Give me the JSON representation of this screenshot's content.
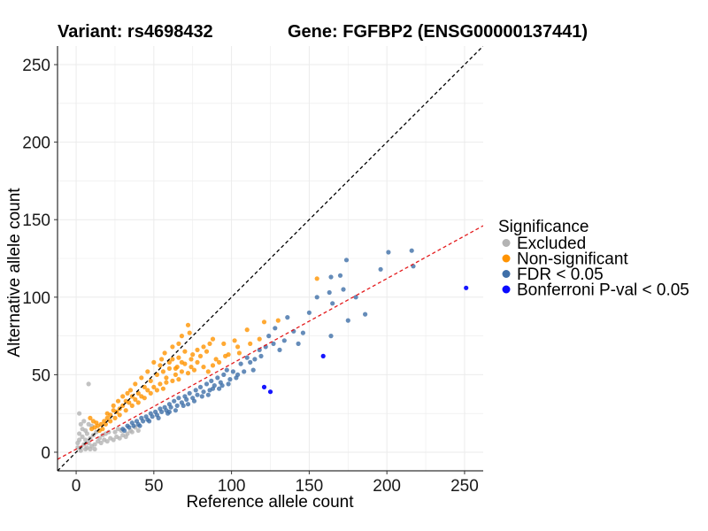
{
  "chart_data": {
    "type": "scatter",
    "title_left": "Variant: rs4698432",
    "title_right": "Gene: FGFBP2 (ENSG00000137441)",
    "xlabel": "Reference allele count",
    "ylabel": "Alternative allele count",
    "xlim": [
      -12,
      262
    ],
    "ylim": [
      -12,
      262
    ],
    "xticks": [
      0,
      50,
      100,
      150,
      200,
      250
    ],
    "yticks": [
      0,
      50,
      100,
      150,
      200,
      250
    ],
    "grid": true,
    "legend": {
      "title": "Significance",
      "position": "right",
      "items": [
        {
          "key": "excluded",
          "label": "Excluded",
          "color": "#b3b3b3"
        },
        {
          "key": "nonsig",
          "label": "Non-significant",
          "color": "#ff9300"
        },
        {
          "key": "fdr",
          "label": "FDR < 0.05",
          "color": "#3f6fa8"
        },
        {
          "key": "bonf",
          "label": "Bonferroni P-val < 0.05",
          "color": "#0a0aff"
        }
      ]
    },
    "reference_lines": [
      {
        "name": "identity",
        "slope": 1.0,
        "intercept": 0,
        "color": "#000000",
        "style": "dashed"
      },
      {
        "name": "fit",
        "slope": 0.55,
        "intercept": 2,
        "color": "#e41a1c",
        "style": "dashed"
      }
    ],
    "series": [
      {
        "key": "bonf",
        "points": [
          [
            251,
            106
          ],
          [
            159,
            62
          ],
          [
            121,
            42
          ],
          [
            125,
            39
          ]
        ]
      },
      {
        "key": "fdr",
        "points": [
          [
            216,
            130
          ],
          [
            217,
            120
          ],
          [
            201,
            129
          ],
          [
            196,
            118
          ],
          [
            186,
            89
          ],
          [
            180,
            100
          ],
          [
            175,
            85
          ],
          [
            172,
            105
          ],
          [
            170,
            114
          ],
          [
            174,
            124
          ],
          [
            164,
            113
          ],
          [
            163,
            103
          ],
          [
            165,
            96
          ],
          [
            164,
            75
          ],
          [
            155,
            100
          ],
          [
            150,
            90
          ],
          [
            140,
            78
          ],
          [
            136,
            87
          ],
          [
            128,
            80
          ],
          [
            124,
            75
          ],
          [
            122,
            68
          ],
          [
            118,
            66
          ],
          [
            115,
            60
          ],
          [
            112,
            58
          ],
          [
            110,
            61
          ],
          [
            106,
            57
          ],
          [
            104,
            50
          ],
          [
            101,
            52
          ],
          [
            99,
            47
          ],
          [
            97,
            53
          ],
          [
            95,
            50
          ],
          [
            93,
            45
          ],
          [
            91,
            48
          ],
          [
            89,
            43
          ],
          [
            87,
            46
          ],
          [
            86,
            40
          ],
          [
            84,
            44
          ],
          [
            82,
            39
          ],
          [
            80,
            42
          ],
          [
            78,
            37
          ],
          [
            77,
            40
          ],
          [
            75,
            35
          ],
          [
            73,
            38
          ],
          [
            71,
            34
          ],
          [
            70,
            36
          ],
          [
            68,
            32
          ],
          [
            66,
            35
          ],
          [
            65,
            30
          ],
          [
            63,
            33
          ],
          [
            61,
            29
          ],
          [
            60,
            31
          ],
          [
            58,
            27
          ],
          [
            57,
            29
          ],
          [
            55,
            26
          ],
          [
            54,
            28
          ],
          [
            52,
            24
          ],
          [
            51,
            26
          ],
          [
            49,
            23
          ],
          [
            48,
            25
          ],
          [
            46,
            21
          ],
          [
            45,
            23
          ],
          [
            43,
            20
          ],
          [
            42,
            22
          ],
          [
            40,
            18
          ],
          [
            39,
            20
          ],
          [
            37,
            17
          ],
          [
            36,
            19
          ],
          [
            34,
            16
          ],
          [
            33,
            17
          ],
          [
            31,
            14
          ],
          [
            30,
            15
          ],
          [
            60,
            26
          ],
          [
            72,
            31
          ],
          [
            85,
            37
          ],
          [
            92,
            41
          ],
          [
            108,
            52
          ],
          [
            114,
            53
          ],
          [
            131,
            66
          ],
          [
            146,
            77
          ],
          [
            143,
            70
          ],
          [
            134,
            72
          ],
          [
            127,
            70
          ],
          [
            119,
            62
          ],
          [
            103,
            48
          ],
          [
            98,
            44
          ],
          [
            94,
            43
          ],
          [
            88,
            41
          ],
          [
            81,
            36
          ],
          [
            76,
            33
          ],
          [
            69,
            30
          ],
          [
            64,
            27
          ],
          [
            59,
            25
          ],
          [
            53,
            22
          ],
          [
            47,
            20
          ],
          [
            41,
            17
          ]
        ]
      },
      {
        "key": "nonsig",
        "points": [
          [
            155,
            112
          ],
          [
            130,
            85
          ],
          [
            121,
            84
          ],
          [
            88,
            73
          ],
          [
            73,
            77
          ],
          [
            72,
            82
          ],
          [
            68,
            75
          ],
          [
            86,
            70
          ],
          [
            95,
            70
          ],
          [
            102,
            72
          ],
          [
            110,
            79
          ],
          [
            104,
            68
          ],
          [
            96,
            62
          ],
          [
            90,
            60
          ],
          [
            84,
            65
          ],
          [
            80,
            62
          ],
          [
            75,
            63
          ],
          [
            70,
            65
          ],
          [
            66,
            61
          ],
          [
            62,
            60
          ],
          [
            78,
            58
          ],
          [
            74,
            55
          ],
          [
            70,
            57
          ],
          [
            65,
            55
          ],
          [
            60,
            54
          ],
          [
            56,
            52
          ],
          [
            52,
            50
          ],
          [
            58,
            48
          ],
          [
            64,
            50
          ],
          [
            68,
            52
          ],
          [
            72,
            51
          ],
          [
            76,
            53
          ],
          [
            82,
            55
          ],
          [
            85,
            52
          ],
          [
            88,
            56
          ],
          [
            92,
            58
          ],
          [
            98,
            63
          ],
          [
            105,
            64
          ],
          [
            112,
            70
          ],
          [
            118,
            73
          ],
          [
            48,
            46
          ],
          [
            50,
            42
          ],
          [
            54,
            44
          ],
          [
            58,
            45
          ],
          [
            62,
            46
          ],
          [
            66,
            47
          ],
          [
            44,
            42
          ],
          [
            46,
            40
          ],
          [
            40,
            38
          ],
          [
            42,
            36
          ],
          [
            38,
            34
          ],
          [
            36,
            36
          ],
          [
            34,
            32
          ],
          [
            32,
            33
          ],
          [
            30,
            30
          ],
          [
            28,
            28
          ],
          [
            26,
            26
          ],
          [
            24,
            27
          ],
          [
            22,
            24
          ],
          [
            20,
            22
          ],
          [
            18,
            20
          ],
          [
            16,
            18
          ],
          [
            14,
            17
          ],
          [
            12,
            16
          ],
          [
            10,
            15
          ],
          [
            48,
            38
          ],
          [
            52,
            40
          ],
          [
            56,
            41
          ],
          [
            44,
            35
          ],
          [
            40,
            32
          ],
          [
            36,
            30
          ],
          [
            32,
            27
          ],
          [
            28,
            24
          ],
          [
            25,
            22
          ],
          [
            22,
            20
          ],
          [
            19,
            18
          ],
          [
            17,
            15
          ],
          [
            15,
            14
          ],
          [
            46,
            52
          ],
          [
            50,
            58
          ],
          [
            55,
            60
          ],
          [
            42,
            48
          ],
          [
            38,
            44
          ],
          [
            35,
            40
          ],
          [
            54,
            56
          ],
          [
            60,
            58
          ],
          [
            64,
            54
          ],
          [
            68,
            58
          ],
          [
            74,
            60
          ],
          [
            78,
            66
          ],
          [
            82,
            68
          ],
          [
            57,
            64
          ],
          [
            62,
            68
          ],
          [
            66,
            70
          ],
          [
            20,
            25
          ],
          [
            24,
            30
          ],
          [
            27,
            33
          ],
          [
            30,
            36
          ],
          [
            33,
            38
          ],
          [
            13,
            19
          ],
          [
            11,
            20
          ],
          [
            9,
            22
          ]
        ]
      },
      {
        "key": "excluded",
        "points": [
          [
            8,
            44
          ],
          [
            2,
            25
          ],
          [
            3,
            18
          ],
          [
            6,
            14
          ],
          [
            4,
            10
          ],
          [
            2,
            8
          ],
          [
            5,
            5
          ],
          [
            1,
            3
          ],
          [
            3,
            3
          ],
          [
            6,
            2
          ],
          [
            8,
            6
          ],
          [
            10,
            4
          ],
          [
            12,
            5
          ],
          [
            14,
            7
          ],
          [
            16,
            6
          ],
          [
            18,
            8
          ],
          [
            20,
            7
          ],
          [
            22,
            9
          ],
          [
            24,
            8
          ],
          [
            26,
            10
          ],
          [
            28,
            9
          ],
          [
            30,
            11
          ],
          [
            32,
            10
          ],
          [
            9,
            9
          ],
          [
            7,
            12
          ],
          [
            11,
            11
          ],
          [
            13,
            13
          ],
          [
            5,
            20
          ],
          [
            4,
            15
          ],
          [
            10,
            17
          ],
          [
            8,
            18
          ],
          [
            6,
            8
          ],
          [
            15,
            9
          ],
          [
            17,
            11
          ],
          [
            19,
            12
          ],
          [
            21,
            13
          ],
          [
            35,
            14
          ],
          [
            38,
            16
          ],
          [
            40,
            14
          ],
          [
            2,
            12
          ],
          [
            1,
            6
          ],
          [
            3,
            1
          ],
          [
            7,
            3
          ],
          [
            9,
            2
          ],
          [
            12,
            2
          ],
          [
            25,
            13
          ],
          [
            27,
            15
          ],
          [
            29,
            14
          ],
          [
            33,
            12
          ],
          [
            36,
            13
          ]
        ]
      }
    ]
  }
}
